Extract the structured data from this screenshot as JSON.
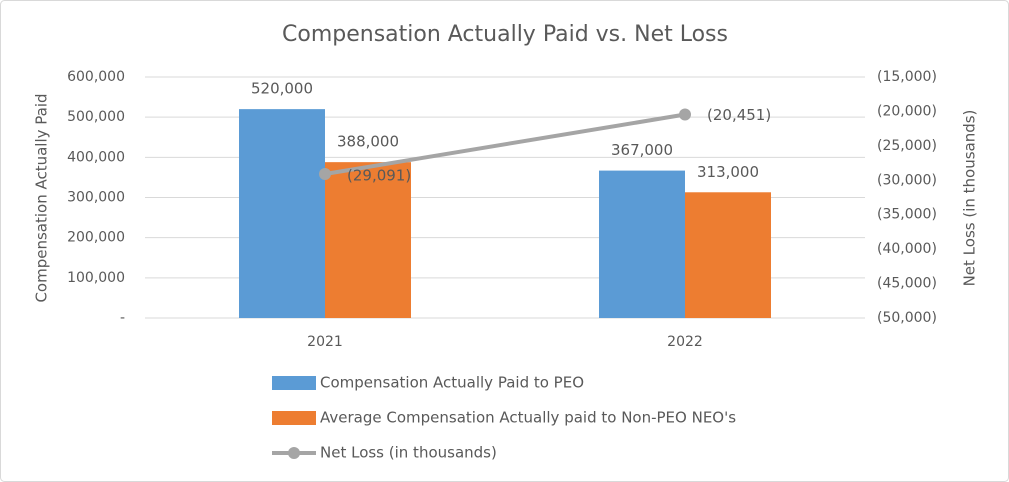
{
  "chart_data": {
    "type": "bar",
    "title": "Compensation Actually Paid vs. Net Loss",
    "categories": [
      "2021",
      "2022"
    ],
    "series": [
      {
        "name": "Compensation Actually Paid to PEO",
        "type": "bar",
        "color": "#5b9bd5",
        "values": [
          520000,
          367000
        ],
        "value_labels": [
          "520,000",
          "367,000"
        ]
      },
      {
        "name": "Average Compensation Actually paid to Non-PEO NEO's",
        "type": "bar",
        "color": "#ed7d31",
        "values": [
          388000,
          313000
        ],
        "value_labels": [
          "388,000",
          "313,000"
        ]
      },
      {
        "name": "Net Loss (in thousands)",
        "type": "line",
        "axis": "y2",
        "color": "#a5a5a5",
        "values": [
          -29091,
          -20451
        ],
        "value_labels": [
          "(29,091)",
          "(20,451)"
        ]
      }
    ],
    "ylabel": "Compensation Actually Paid",
    "y2label": "Net Loss (in thousands)",
    "ylim": [
      0,
      600000
    ],
    "yticks": [
      {
        "value": 0,
        "label": "-"
      },
      {
        "value": 100000,
        "label": "100,000"
      },
      {
        "value": 200000,
        "label": "200,000"
      },
      {
        "value": 300000,
        "label": "300,000"
      },
      {
        "value": 400000,
        "label": "400,000"
      },
      {
        "value": 500000,
        "label": "500,000"
      },
      {
        "value": 600000,
        "label": "600,000"
      }
    ],
    "y2lim": [
      -50000,
      -15000
    ],
    "y2ticks": [
      {
        "value": -50000,
        "label": "(50,000)"
      },
      {
        "value": -45000,
        "label": "(45,000)"
      },
      {
        "value": -40000,
        "label": "(40,000)"
      },
      {
        "value": -35000,
        "label": "(35,000)"
      },
      {
        "value": -30000,
        "label": "(30,000)"
      },
      {
        "value": -25000,
        "label": "(25,000)"
      },
      {
        "value": -20000,
        "label": "(20,000)"
      },
      {
        "value": -15000,
        "label": "(15,000)"
      }
    ],
    "grid": true,
    "legend": "bottom"
  }
}
